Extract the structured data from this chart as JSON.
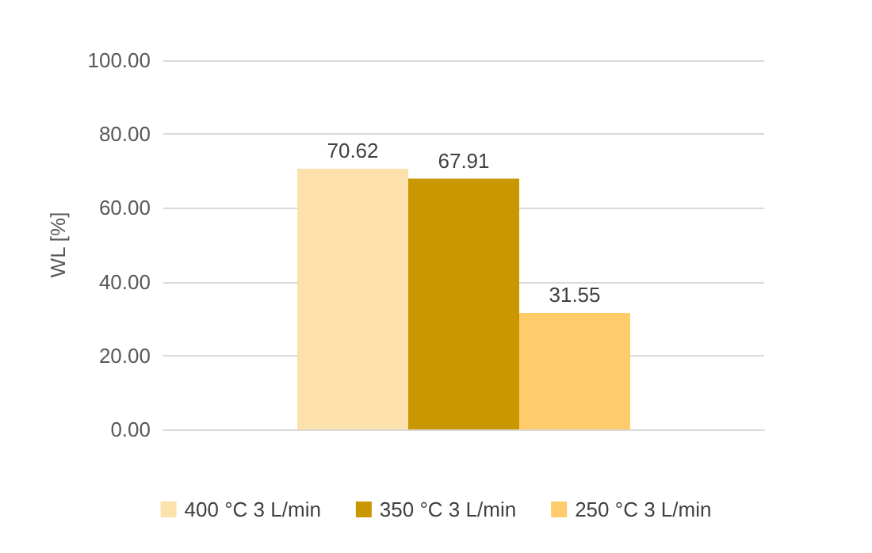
{
  "chart_data": {
    "type": "bar",
    "ylabel": "WL [%]",
    "categories": [
      null
    ],
    "series": [
      {
        "name": "400 °C 3 L/min",
        "color": "#fde1ac",
        "values": [
          70.62
        ]
      },
      {
        "name": "350 °C 3 L/min",
        "color": "#c99800",
        "values": [
          67.91
        ]
      },
      {
        "name": "250 °C 3 L/min",
        "color": "#ffcb6b",
        "values": [
          31.55
        ]
      }
    ],
    "ylim": [
      0,
      100
    ],
    "yticks": [
      {
        "value": 0,
        "label": "0.00"
      },
      {
        "value": 20,
        "label": "20.00"
      },
      {
        "value": 40,
        "label": "40.00"
      },
      {
        "value": 60,
        "label": "60.00"
      },
      {
        "value": 80,
        "label": "80.00"
      },
      {
        "value": 100,
        "label": "100.00"
      }
    ],
    "grid": true,
    "legend": "bottom",
    "data_labels": true
  }
}
